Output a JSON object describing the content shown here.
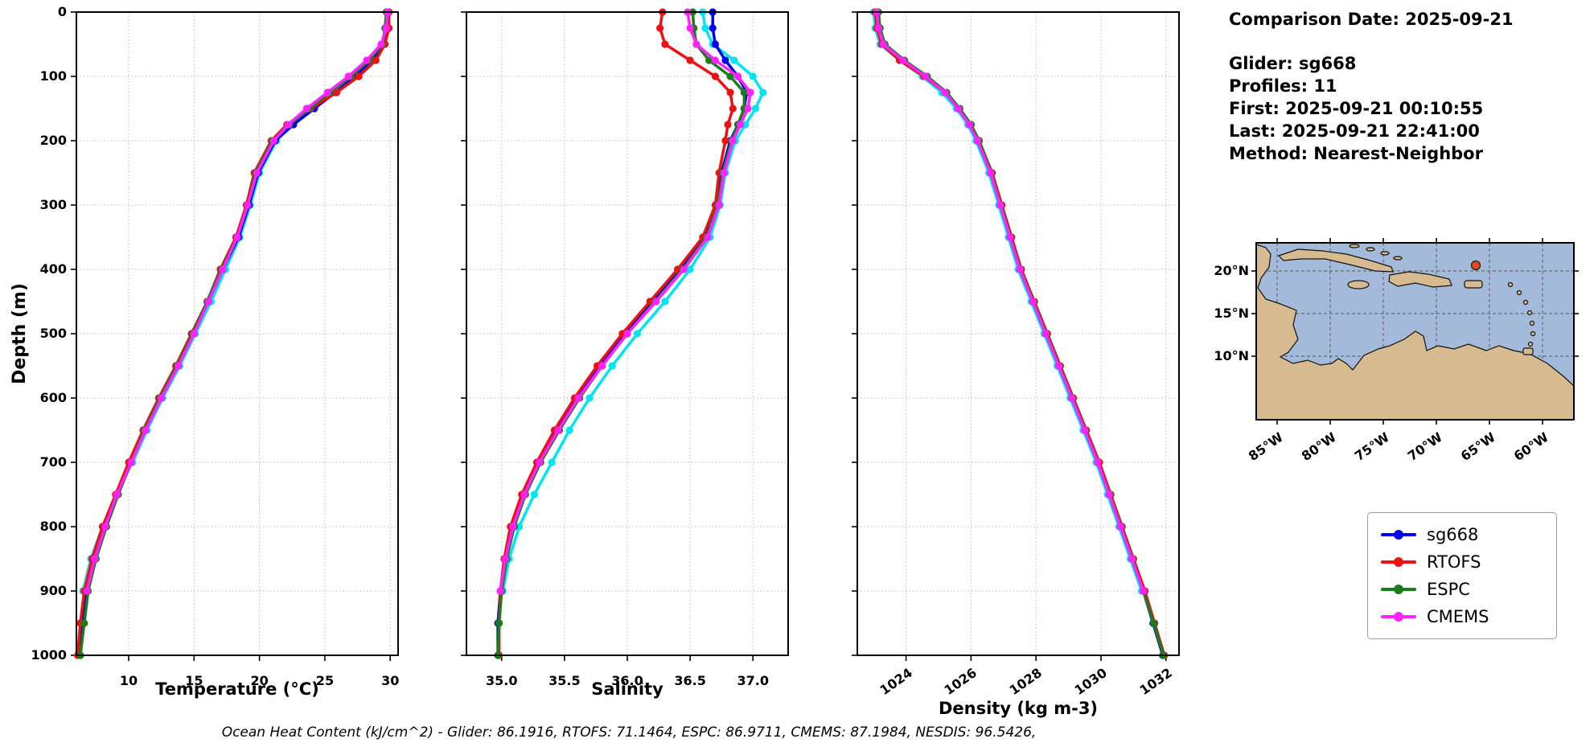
{
  "ylabel": "Depth (m)",
  "header": {
    "comparison_date": "Comparison Date: 2025-09-21",
    "glider": "Glider: sg668",
    "profiles": "Profiles: 11",
    "first": "First: 2025-09-21 00:10:55",
    "last": "Last: 2025-09-21 22:41:00",
    "method": "Method: Nearest-Neighbor"
  },
  "footer": {
    "text": "Ocean Heat Content (kJ/cm^2) - Glider: 86.1916,  RTOFS: 71.1464,  ESPC: 86.9711,  CMEMS: 87.1984,  NESDIS: 96.5426,"
  },
  "legend": {
    "entries": [
      {
        "label": "sg668",
        "color": "#0000ee"
      },
      {
        "label": "RTOFS",
        "color": "#ee1111"
      },
      {
        "label": "ESPC",
        "color": "#1a7d1a"
      },
      {
        "label": "CMEMS",
        "color": "#ff22ff"
      }
    ]
  },
  "map": {
    "yticks": [
      "20°N",
      "15°N",
      "10°N"
    ],
    "xticks": [
      "85°W",
      "80°W",
      "75°W",
      "70°W",
      "65°W",
      "60°W"
    ],
    "colors": {
      "ocean": "#a3bada",
      "land": "#d7bb90",
      "marker": "#e8481f"
    }
  },
  "chart_data": [
    {
      "type": "line",
      "xlabel": "Temperature (°C)",
      "ylabel": "Depth (m)",
      "xlim": [
        6.0,
        30.6
      ],
      "ylim": [
        0,
        1000
      ],
      "xticks": [
        10,
        15,
        20,
        25,
        30
      ],
      "xtick_labels": [
        "10",
        "15",
        "20",
        "25",
        "30"
      ],
      "yticks": [
        0,
        100,
        200,
        300,
        400,
        500,
        600,
        700,
        800,
        900,
        1000
      ],
      "xtick_rotation": 0,
      "show_yticklabels": true,
      "grid": true,
      "depths": [
        0,
        25,
        50,
        75,
        100,
        125,
        150,
        175,
        200,
        250,
        300,
        350,
        400,
        450,
        500,
        550,
        600,
        650,
        700,
        750,
        800,
        850,
        900,
        950,
        1000
      ],
      "series": [
        {
          "name": "NESDIS",
          "color": "#00e5ee",
          "values": [
            29.9,
            29.8,
            29.4,
            28.3,
            26.9,
            25.3,
            23.7,
            22.4,
            21.3,
            20.0,
            19.3,
            18.5,
            17.4,
            16.3,
            15.1,
            13.9,
            12.6,
            11.4,
            10.3,
            9.0,
            8.0,
            7.1,
            6.5,
            null,
            null
          ]
        },
        {
          "name": "sg668",
          "color": "#0000ee",
          "values": [
            29.9,
            29.8,
            29.5,
            28.6,
            27.3,
            25.8,
            24.2,
            22.6,
            21.2,
            19.9,
            19.2,
            18.4,
            17.2,
            16.1,
            14.9,
            13.7,
            12.4,
            11.2,
            10.1,
            9.1,
            8.2,
            7.4,
            6.8,
            6.5,
            6.3
          ]
        },
        {
          "name": "RTOFS",
          "color": "#ee1111",
          "values": [
            29.9,
            29.9,
            29.6,
            28.9,
            27.6,
            25.9,
            23.9,
            22.1,
            20.9,
            19.6,
            19.0,
            18.2,
            17.0,
            16.0,
            14.8,
            13.6,
            12.3,
            11.1,
            10.0,
            9.0,
            8.0,
            7.2,
            6.6,
            6.3,
            6.1
          ]
        },
        {
          "name": "ESPC",
          "color": "#1a7d1a",
          "values": [
            29.7,
            29.6,
            29.4,
            28.4,
            27.0,
            25.4,
            23.8,
            22.3,
            21.0,
            19.7,
            19.1,
            18.3,
            17.1,
            16.0,
            14.9,
            13.7,
            12.4,
            11.2,
            10.2,
            9.2,
            8.3,
            7.5,
            6.9,
            6.6,
            6.3
          ]
        },
        {
          "name": "CMEMS",
          "color": "#ff22ff",
          "values": [
            29.8,
            29.7,
            29.3,
            28.2,
            26.8,
            25.2,
            23.6,
            22.2,
            21.1,
            19.8,
            19.1,
            18.3,
            17.2,
            16.1,
            15.0,
            13.8,
            12.5,
            11.3,
            10.2,
            9.1,
            8.2,
            7.4,
            6.8,
            null,
            null
          ]
        }
      ]
    },
    {
      "type": "line",
      "xlabel": "Salinity",
      "ylabel": "Depth (m)",
      "xlim": [
        34.72,
        37.28
      ],
      "ylim": [
        0,
        1000
      ],
      "xticks": [
        35.0,
        35.5,
        36.0,
        36.5,
        37.0
      ],
      "xtick_labels": [
        "35.0",
        "35.5",
        "36.0",
        "36.5",
        "37.0"
      ],
      "yticks": [
        0,
        100,
        200,
        300,
        400,
        500,
        600,
        700,
        800,
        900,
        1000
      ],
      "xtick_rotation": 0,
      "show_yticklabels": false,
      "grid": true,
      "depths": [
        0,
        25,
        50,
        75,
        100,
        125,
        150,
        175,
        200,
        250,
        300,
        350,
        400,
        450,
        500,
        550,
        600,
        650,
        700,
        750,
        800,
        850,
        900,
        950,
        1000
      ],
      "series": [
        {
          "name": "NESDIS",
          "color": "#00e5ee",
          "values": [
            36.6,
            36.62,
            36.68,
            36.85,
            37.0,
            37.08,
            37.02,
            36.94,
            36.86,
            36.78,
            36.74,
            36.66,
            36.5,
            36.3,
            36.08,
            35.88,
            35.7,
            35.54,
            35.4,
            35.26,
            35.14,
            35.06,
            35.01,
            null,
            null
          ]
        },
        {
          "name": "sg668",
          "color": "#0000ee",
          "values": [
            36.68,
            36.68,
            36.7,
            36.78,
            36.88,
            36.95,
            36.93,
            36.88,
            36.82,
            36.75,
            36.72,
            36.62,
            36.42,
            36.2,
            35.98,
            35.78,
            35.6,
            35.44,
            35.3,
            35.18,
            35.09,
            35.03,
            34.99,
            34.97,
            34.97
          ]
        },
        {
          "name": "RTOFS",
          "color": "#ee1111",
          "values": [
            36.28,
            36.26,
            36.3,
            36.5,
            36.7,
            36.82,
            36.84,
            36.8,
            36.78,
            36.73,
            36.7,
            36.6,
            36.4,
            36.18,
            35.96,
            35.76,
            35.58,
            35.42,
            35.28,
            35.16,
            35.07,
            35.02,
            34.99,
            34.98,
            34.98
          ]
        },
        {
          "name": "ESPC",
          "color": "#1a7d1a",
          "values": [
            36.52,
            36.53,
            36.55,
            36.65,
            36.82,
            36.93,
            36.93,
            36.88,
            36.83,
            36.76,
            36.72,
            36.63,
            36.44,
            36.22,
            36.0,
            35.8,
            35.62,
            35.46,
            35.31,
            35.19,
            35.1,
            35.04,
            35.0,
            34.98,
            34.97
          ]
        },
        {
          "name": "CMEMS",
          "color": "#ff22ff",
          "values": [
            36.48,
            36.5,
            36.55,
            36.7,
            36.88,
            36.98,
            36.96,
            36.9,
            36.84,
            36.77,
            36.73,
            36.64,
            36.45,
            36.23,
            36.0,
            35.8,
            35.61,
            35.45,
            35.3,
            35.18,
            35.09,
            35.03,
            34.99,
            null,
            null
          ]
        }
      ]
    },
    {
      "type": "line",
      "xlabel": "Density (kg m-3)",
      "ylabel": "Depth (m)",
      "xlim": [
        1022.5,
        1032.4
      ],
      "ylim": [
        0,
        1000
      ],
      "xticks": [
        1024,
        1026,
        1028,
        1030,
        1032
      ],
      "xtick_labels": [
        "1024",
        "1026",
        "1028",
        "1030",
        "1032"
      ],
      "yticks": [
        0,
        100,
        200,
        300,
        400,
        500,
        600,
        700,
        800,
        900,
        1000
      ],
      "xtick_rotation": 35,
      "show_yticklabels": false,
      "grid": true,
      "depths": [
        0,
        25,
        50,
        75,
        100,
        125,
        150,
        175,
        200,
        250,
        300,
        350,
        400,
        450,
        500,
        550,
        600,
        650,
        700,
        750,
        800,
        850,
        900,
        950,
        1000
      ],
      "series": [
        {
          "name": "NESDIS",
          "color": "#00e5ee",
          "values": [
            1023.0,
            1023.05,
            1023.2,
            1023.8,
            1024.5,
            1025.1,
            1025.55,
            1025.9,
            1026.15,
            1026.55,
            1026.85,
            1027.15,
            1027.45,
            1027.85,
            1028.25,
            1028.65,
            1029.05,
            1029.45,
            1029.85,
            1030.2,
            1030.55,
            1030.9,
            1031.25,
            null,
            null
          ]
        },
        {
          "name": "sg668",
          "color": "#0000ee",
          "values": [
            1023.1,
            1023.15,
            1023.3,
            1023.9,
            1024.6,
            1025.2,
            1025.6,
            1025.95,
            1026.2,
            1026.6,
            1026.9,
            1027.2,
            1027.5,
            1027.9,
            1028.3,
            1028.7,
            1029.1,
            1029.5,
            1029.9,
            1030.25,
            1030.6,
            1030.95,
            1031.3,
            1031.6,
            1031.9
          ]
        },
        {
          "name": "RTOFS",
          "color": "#ee1111",
          "values": [
            1023.05,
            1023.1,
            1023.25,
            1023.8,
            1024.55,
            1025.2,
            1025.65,
            1026.0,
            1026.25,
            1026.65,
            1026.95,
            1027.25,
            1027.55,
            1027.95,
            1028.35,
            1028.75,
            1029.15,
            1029.55,
            1029.95,
            1030.3,
            1030.65,
            1031.0,
            1031.35,
            1031.65,
            1031.95
          ]
        },
        {
          "name": "ESPC",
          "color": "#1a7d1a",
          "values": [
            1023.15,
            1023.2,
            1023.35,
            1023.95,
            1024.65,
            1025.25,
            1025.65,
            1026.0,
            1026.25,
            1026.62,
            1026.92,
            1027.22,
            1027.52,
            1027.92,
            1028.32,
            1028.72,
            1029.12,
            1029.52,
            1029.9,
            1030.27,
            1030.62,
            1030.97,
            1031.3,
            1031.62,
            1031.92
          ]
        },
        {
          "name": "CMEMS",
          "color": "#ff22ff",
          "values": [
            1023.1,
            1023.15,
            1023.3,
            1023.9,
            1024.6,
            1025.2,
            1025.6,
            1025.95,
            1026.2,
            1026.6,
            1026.9,
            1027.2,
            1027.5,
            1027.9,
            1028.3,
            1028.7,
            1029.1,
            1029.5,
            1029.9,
            1030.25,
            1030.6,
            1030.95,
            1031.3,
            null,
            null
          ]
        }
      ]
    }
  ]
}
